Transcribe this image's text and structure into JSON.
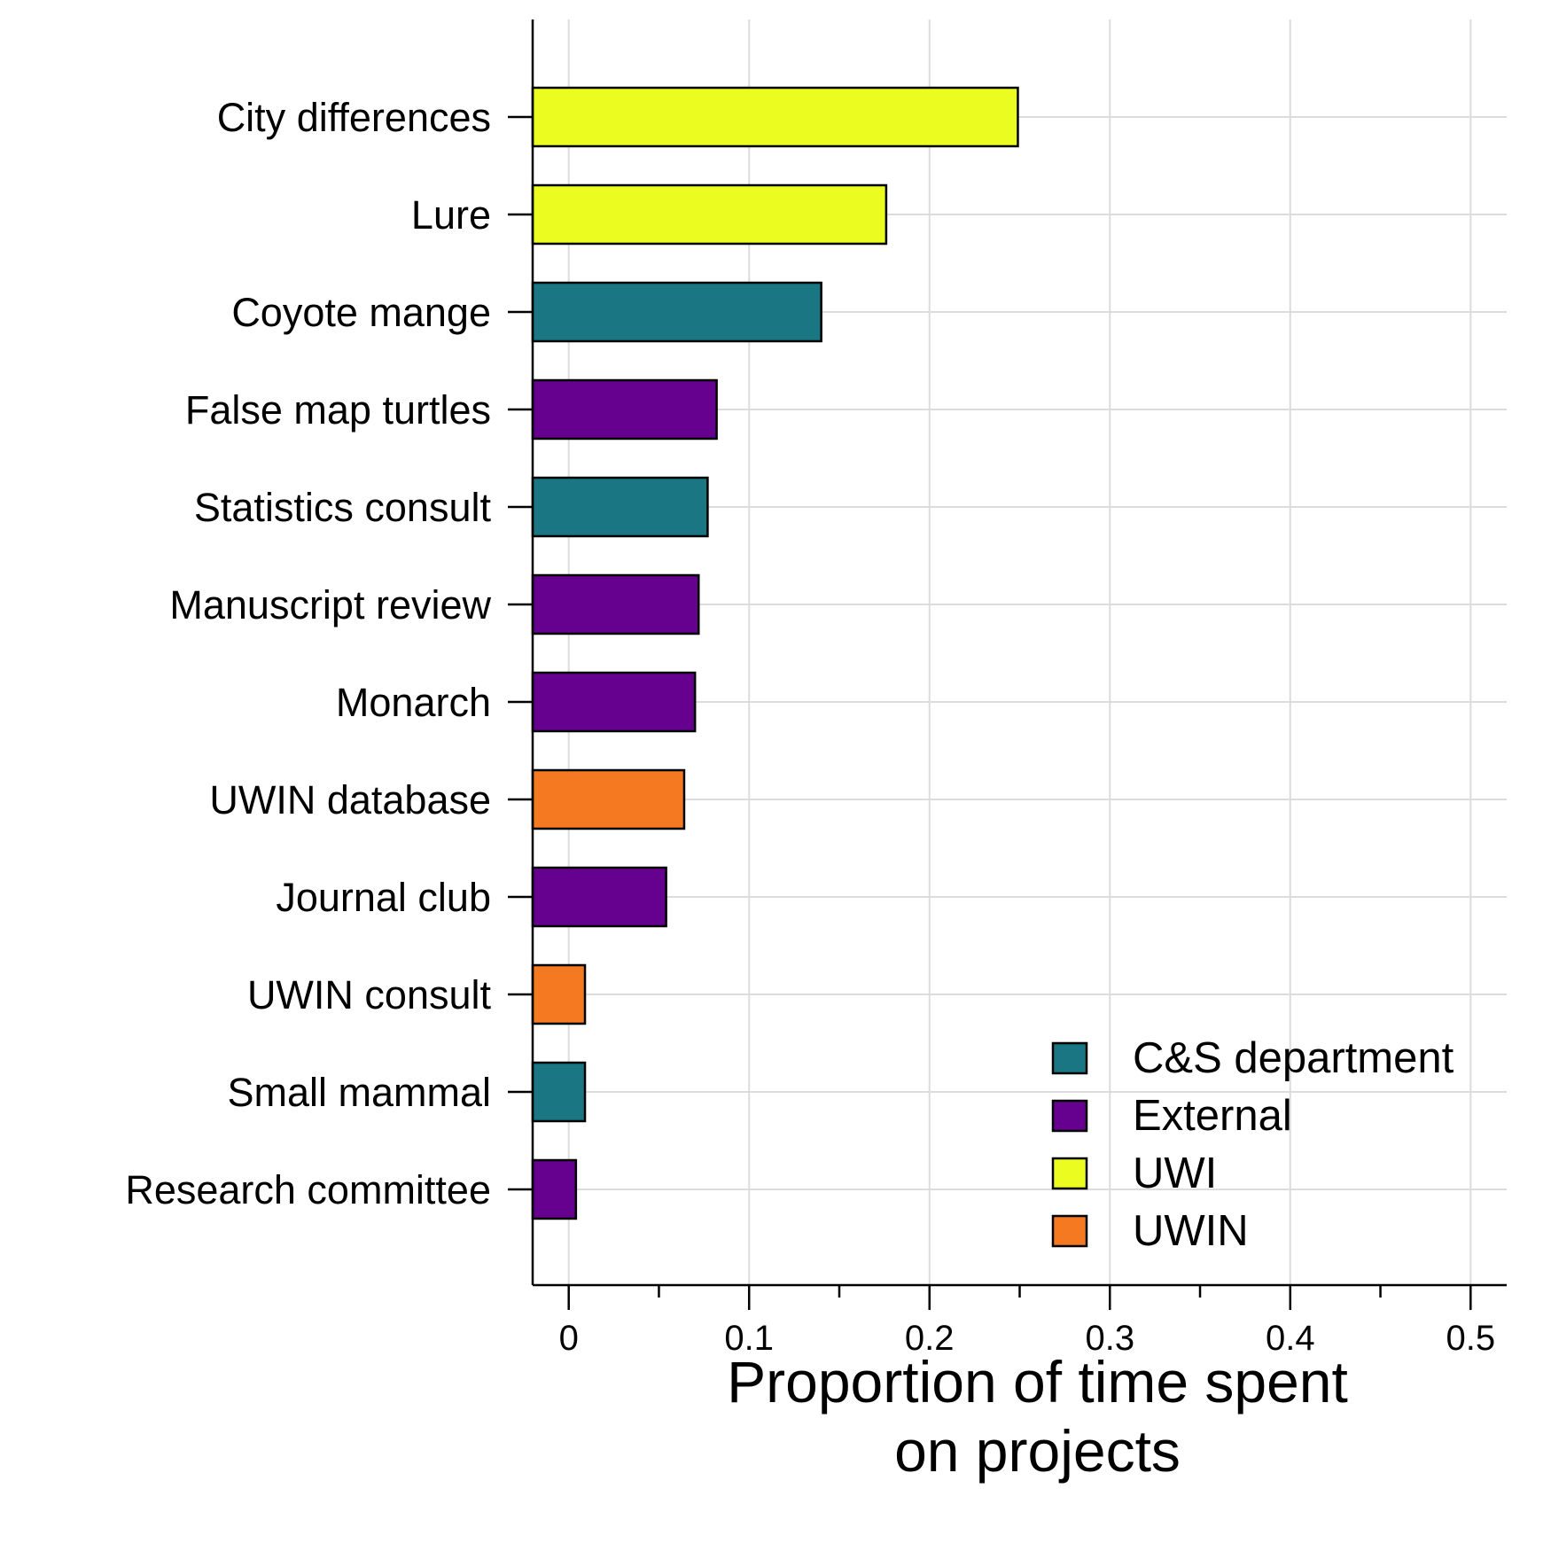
{
  "chart_data": {
    "type": "bar",
    "orientation": "horizontal",
    "categories": [
      "City differences",
      "Lure",
      "Coyote mange",
      "False map turtles",
      "Statistics consult",
      "Manuscript review",
      "Monarch",
      "UWIN database",
      "Journal club",
      "UWIN consult",
      "Small mammal",
      "Research committee"
    ],
    "values": [
      0.249,
      0.176,
      0.14,
      0.082,
      0.077,
      0.072,
      0.07,
      0.064,
      0.054,
      0.009,
      0.009,
      0.004
    ],
    "groups": [
      "UWI",
      "UWI",
      "C&S department",
      "External",
      "C&S department",
      "External",
      "External",
      "UWIN",
      "External",
      "UWIN",
      "C&S department",
      "External"
    ],
    "xlabel": [
      "Proportion of time spent",
      "on projects"
    ],
    "ylabel": "",
    "xlim": [
      -0.02,
      0.52
    ],
    "xticks": [
      0,
      0.1,
      0.2,
      0.3,
      0.4,
      0.5
    ],
    "xtick_labels": [
      "0",
      "0.1",
      "0.2",
      "0.3",
      "0.4",
      "0.5"
    ],
    "grid": true,
    "legend": {
      "placement": "bottom-right",
      "entries": [
        {
          "label": "C&S department",
          "color": "#1b7684"
        },
        {
          "label": "External",
          "color": "#66008f"
        },
        {
          "label": "UWI",
          "color": "#eafc20"
        },
        {
          "label": "UWIN",
          "color": "#f47920"
        }
      ]
    }
  }
}
